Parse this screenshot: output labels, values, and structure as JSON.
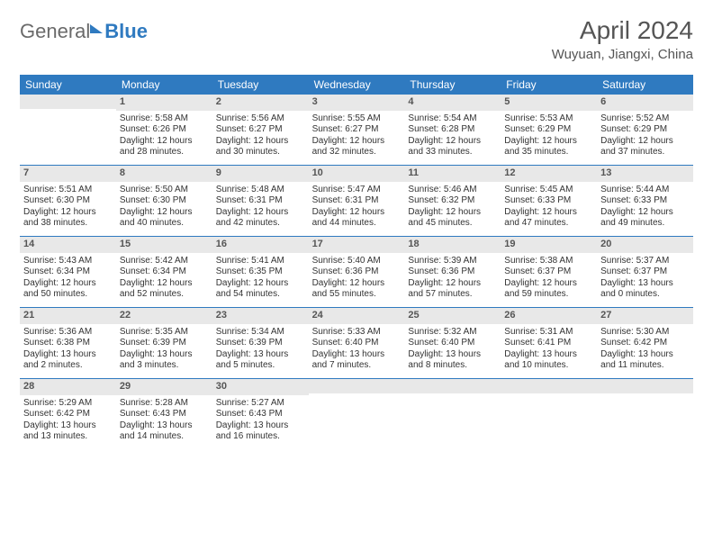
{
  "brand": {
    "part1": "General",
    "part2": "Blue"
  },
  "title": "April 2024",
  "subtitle": "Wuyuan, Jiangxi, China",
  "colors": {
    "header_bg": "#2f7ac0",
    "header_text": "#ffffff",
    "daynum_bg": "#e8e8e8",
    "text": "#333333",
    "title_text": "#555555"
  },
  "typography": {
    "title_fontsize": 28,
    "subtitle_fontsize": 15,
    "dayhead_fontsize": 12,
    "cell_fontsize": 10
  },
  "day_names": [
    "Sunday",
    "Monday",
    "Tuesday",
    "Wednesday",
    "Thursday",
    "Friday",
    "Saturday"
  ],
  "weeks": [
    [
      null,
      {
        "n": "1",
        "sr": "Sunrise: 5:58 AM",
        "ss": "Sunset: 6:26 PM",
        "d1": "Daylight: 12 hours",
        "d2": "and 28 minutes."
      },
      {
        "n": "2",
        "sr": "Sunrise: 5:56 AM",
        "ss": "Sunset: 6:27 PM",
        "d1": "Daylight: 12 hours",
        "d2": "and 30 minutes."
      },
      {
        "n": "3",
        "sr": "Sunrise: 5:55 AM",
        "ss": "Sunset: 6:27 PM",
        "d1": "Daylight: 12 hours",
        "d2": "and 32 minutes."
      },
      {
        "n": "4",
        "sr": "Sunrise: 5:54 AM",
        "ss": "Sunset: 6:28 PM",
        "d1": "Daylight: 12 hours",
        "d2": "and 33 minutes."
      },
      {
        "n": "5",
        "sr": "Sunrise: 5:53 AM",
        "ss": "Sunset: 6:29 PM",
        "d1": "Daylight: 12 hours",
        "d2": "and 35 minutes."
      },
      {
        "n": "6",
        "sr": "Sunrise: 5:52 AM",
        "ss": "Sunset: 6:29 PM",
        "d1": "Daylight: 12 hours",
        "d2": "and 37 minutes."
      }
    ],
    [
      {
        "n": "7",
        "sr": "Sunrise: 5:51 AM",
        "ss": "Sunset: 6:30 PM",
        "d1": "Daylight: 12 hours",
        "d2": "and 38 minutes."
      },
      {
        "n": "8",
        "sr": "Sunrise: 5:50 AM",
        "ss": "Sunset: 6:30 PM",
        "d1": "Daylight: 12 hours",
        "d2": "and 40 minutes."
      },
      {
        "n": "9",
        "sr": "Sunrise: 5:48 AM",
        "ss": "Sunset: 6:31 PM",
        "d1": "Daylight: 12 hours",
        "d2": "and 42 minutes."
      },
      {
        "n": "10",
        "sr": "Sunrise: 5:47 AM",
        "ss": "Sunset: 6:31 PM",
        "d1": "Daylight: 12 hours",
        "d2": "and 44 minutes."
      },
      {
        "n": "11",
        "sr": "Sunrise: 5:46 AM",
        "ss": "Sunset: 6:32 PM",
        "d1": "Daylight: 12 hours",
        "d2": "and 45 minutes."
      },
      {
        "n": "12",
        "sr": "Sunrise: 5:45 AM",
        "ss": "Sunset: 6:33 PM",
        "d1": "Daylight: 12 hours",
        "d2": "and 47 minutes."
      },
      {
        "n": "13",
        "sr": "Sunrise: 5:44 AM",
        "ss": "Sunset: 6:33 PM",
        "d1": "Daylight: 12 hours",
        "d2": "and 49 minutes."
      }
    ],
    [
      {
        "n": "14",
        "sr": "Sunrise: 5:43 AM",
        "ss": "Sunset: 6:34 PM",
        "d1": "Daylight: 12 hours",
        "d2": "and 50 minutes."
      },
      {
        "n": "15",
        "sr": "Sunrise: 5:42 AM",
        "ss": "Sunset: 6:34 PM",
        "d1": "Daylight: 12 hours",
        "d2": "and 52 minutes."
      },
      {
        "n": "16",
        "sr": "Sunrise: 5:41 AM",
        "ss": "Sunset: 6:35 PM",
        "d1": "Daylight: 12 hours",
        "d2": "and 54 minutes."
      },
      {
        "n": "17",
        "sr": "Sunrise: 5:40 AM",
        "ss": "Sunset: 6:36 PM",
        "d1": "Daylight: 12 hours",
        "d2": "and 55 minutes."
      },
      {
        "n": "18",
        "sr": "Sunrise: 5:39 AM",
        "ss": "Sunset: 6:36 PM",
        "d1": "Daylight: 12 hours",
        "d2": "and 57 minutes."
      },
      {
        "n": "19",
        "sr": "Sunrise: 5:38 AM",
        "ss": "Sunset: 6:37 PM",
        "d1": "Daylight: 12 hours",
        "d2": "and 59 minutes."
      },
      {
        "n": "20",
        "sr": "Sunrise: 5:37 AM",
        "ss": "Sunset: 6:37 PM",
        "d1": "Daylight: 13 hours",
        "d2": "and 0 minutes."
      }
    ],
    [
      {
        "n": "21",
        "sr": "Sunrise: 5:36 AM",
        "ss": "Sunset: 6:38 PM",
        "d1": "Daylight: 13 hours",
        "d2": "and 2 minutes."
      },
      {
        "n": "22",
        "sr": "Sunrise: 5:35 AM",
        "ss": "Sunset: 6:39 PM",
        "d1": "Daylight: 13 hours",
        "d2": "and 3 minutes."
      },
      {
        "n": "23",
        "sr": "Sunrise: 5:34 AM",
        "ss": "Sunset: 6:39 PM",
        "d1": "Daylight: 13 hours",
        "d2": "and 5 minutes."
      },
      {
        "n": "24",
        "sr": "Sunrise: 5:33 AM",
        "ss": "Sunset: 6:40 PM",
        "d1": "Daylight: 13 hours",
        "d2": "and 7 minutes."
      },
      {
        "n": "25",
        "sr": "Sunrise: 5:32 AM",
        "ss": "Sunset: 6:40 PM",
        "d1": "Daylight: 13 hours",
        "d2": "and 8 minutes."
      },
      {
        "n": "26",
        "sr": "Sunrise: 5:31 AM",
        "ss": "Sunset: 6:41 PM",
        "d1": "Daylight: 13 hours",
        "d2": "and 10 minutes."
      },
      {
        "n": "27",
        "sr": "Sunrise: 5:30 AM",
        "ss": "Sunset: 6:42 PM",
        "d1": "Daylight: 13 hours",
        "d2": "and 11 minutes."
      }
    ],
    [
      {
        "n": "28",
        "sr": "Sunrise: 5:29 AM",
        "ss": "Sunset: 6:42 PM",
        "d1": "Daylight: 13 hours",
        "d2": "and 13 minutes."
      },
      {
        "n": "29",
        "sr": "Sunrise: 5:28 AM",
        "ss": "Sunset: 6:43 PM",
        "d1": "Daylight: 13 hours",
        "d2": "and 14 minutes."
      },
      {
        "n": "30",
        "sr": "Sunrise: 5:27 AM",
        "ss": "Sunset: 6:43 PM",
        "d1": "Daylight: 13 hours",
        "d2": "and 16 minutes."
      },
      null,
      null,
      null,
      null
    ]
  ]
}
